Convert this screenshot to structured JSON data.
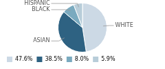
{
  "chart_data": {
    "type": "pie",
    "categories": [
      "WHITE",
      "ASIAN",
      "BLACK",
      "HISPANIC"
    ],
    "values": [
      47.6,
      38.5,
      8.0,
      5.9
    ],
    "value_labels": [
      "47.6%",
      "38.5%",
      "8.0%",
      "5.9%"
    ],
    "colors": [
      "#ccd9e5",
      "#2e6282",
      "#7aaabf",
      "#b8cdd9"
    ],
    "legend": "lower left"
  }
}
